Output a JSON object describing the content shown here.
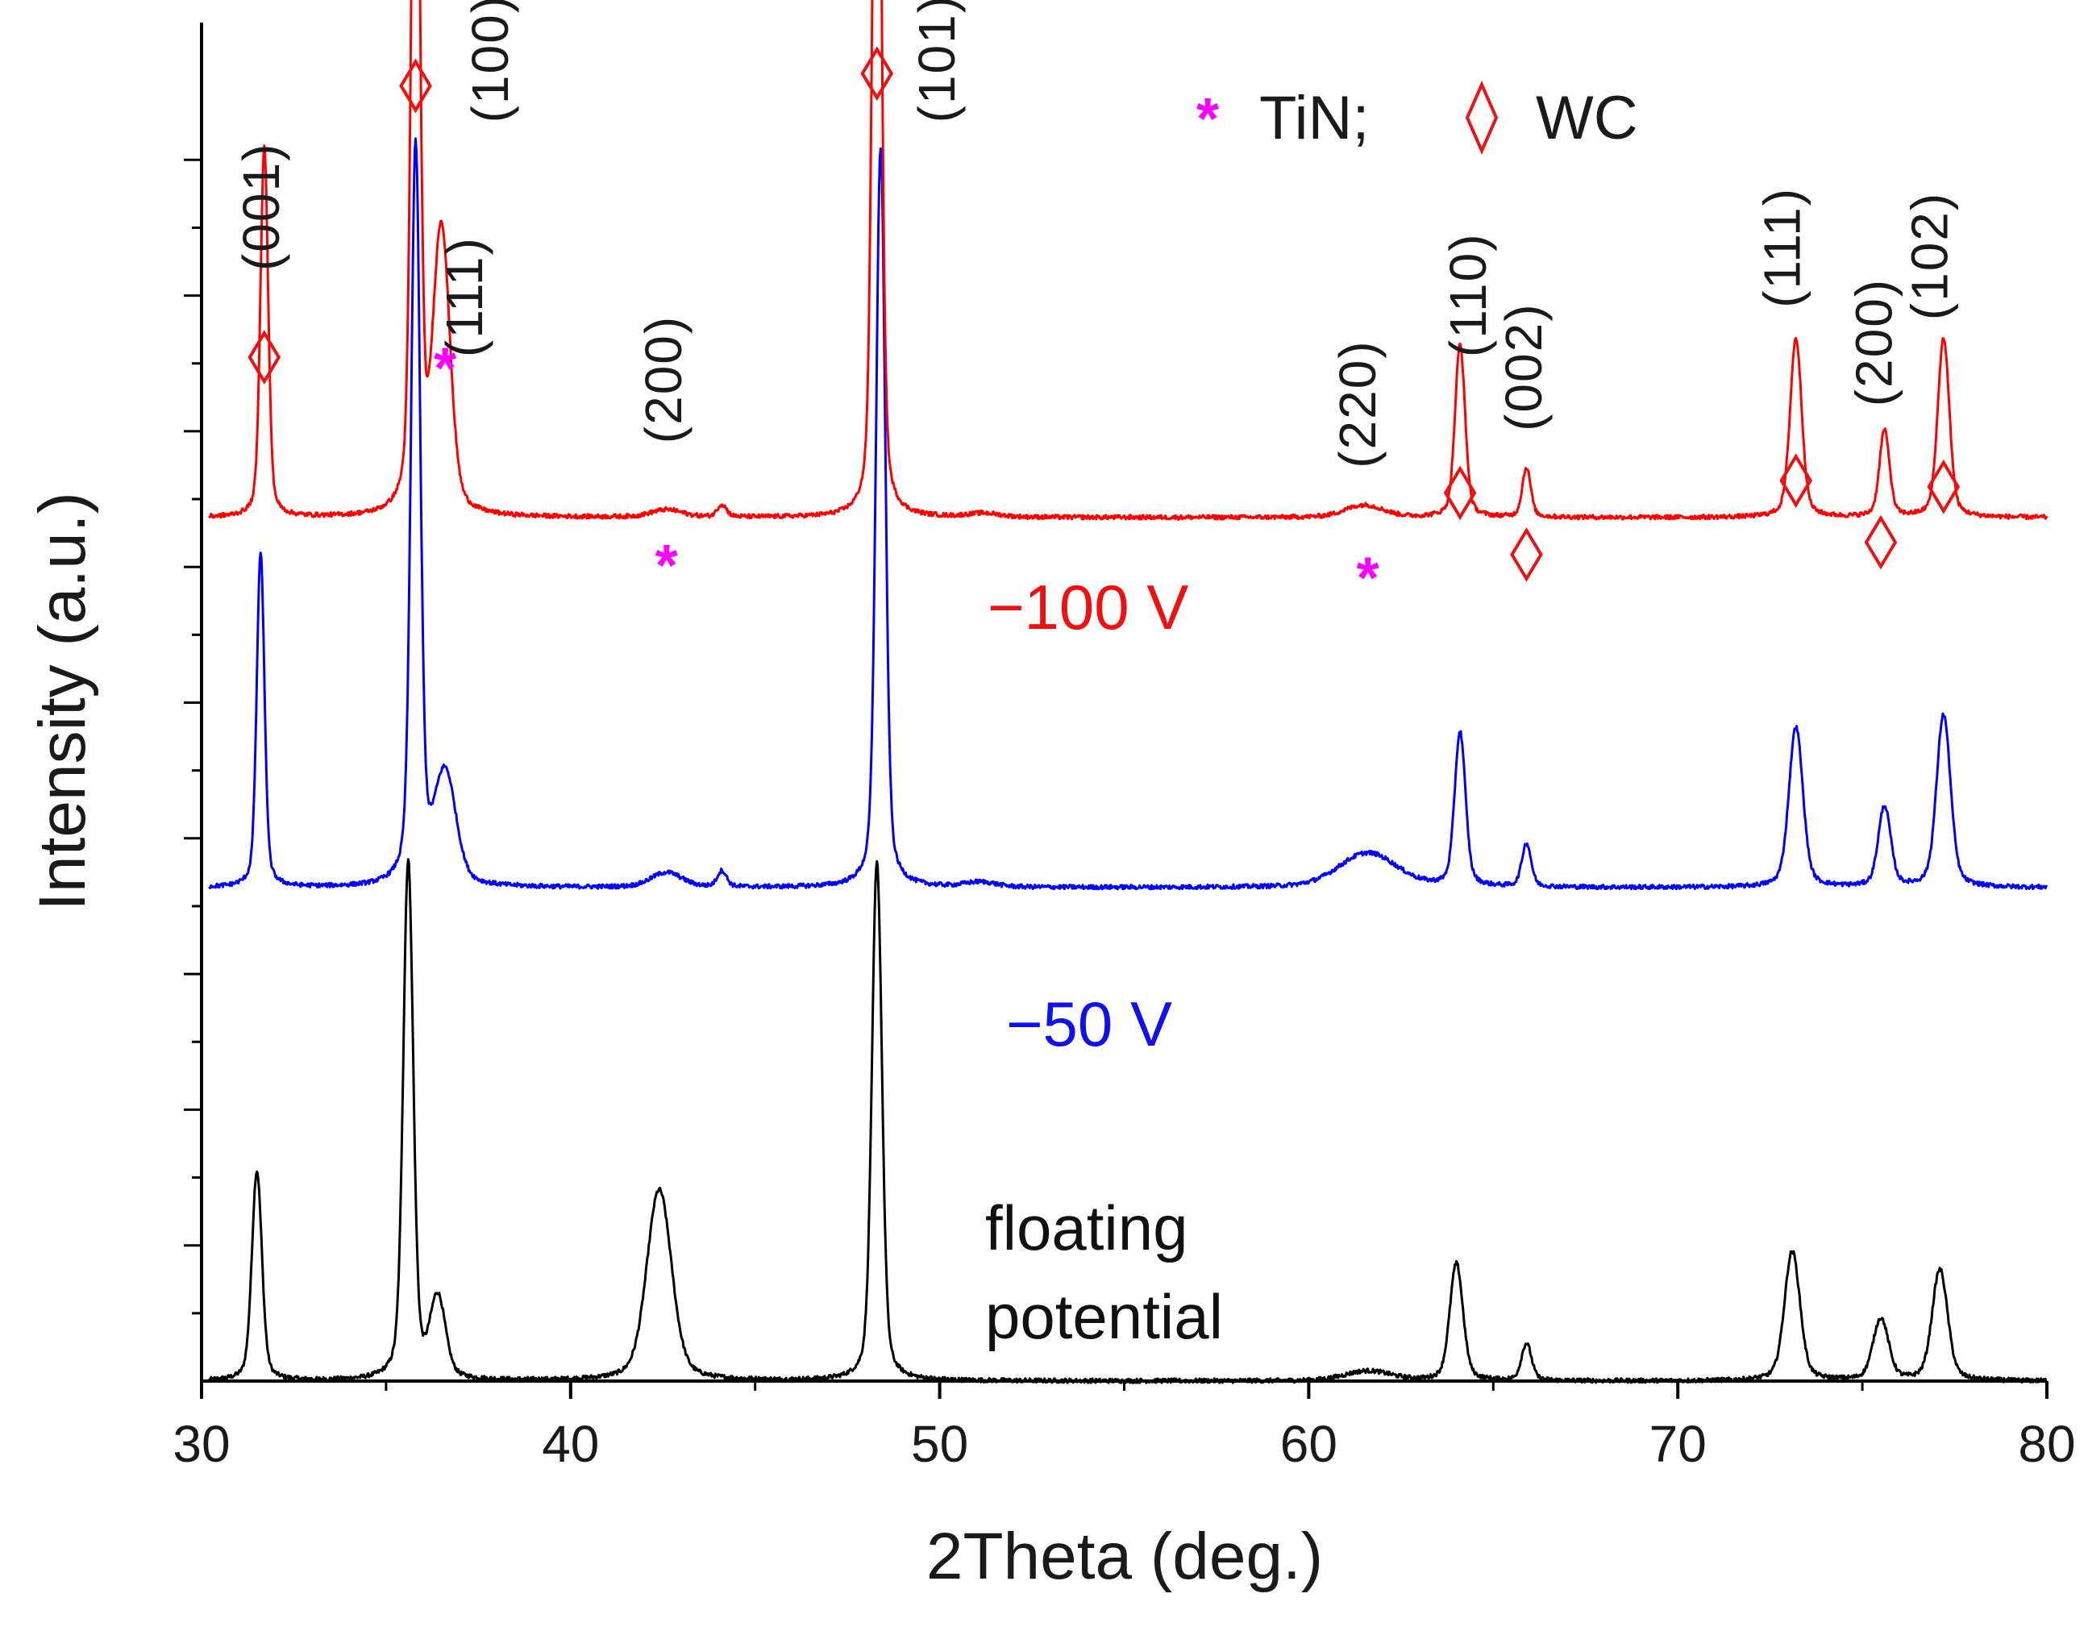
{
  "chart_data": {
    "type": "line",
    "title": "",
    "xlabel": "2Theta (deg.)",
    "ylabel": "Intensity (a.u.)",
    "xlim": [
      30,
      80
    ],
    "ylim": [
      0,
      100
    ],
    "x_ticks": [
      30,
      40,
      50,
      60,
      70,
      80
    ],
    "x_tick_labels": [
      "30",
      "40",
      "50",
      "60",
      "70",
      "80"
    ],
    "y_tick_labels_shown": false,
    "grid": false,
    "legend": {
      "position": "top-right",
      "entries": [
        {
          "marker": "*",
          "label": "TiN;",
          "color": "#ff00ff"
        },
        {
          "marker": "◊",
          "label": "WC",
          "color": "#ee1111"
        }
      ]
    },
    "series": [
      {
        "name": "floating potential",
        "label_lines": [
          "floating",
          "potential"
        ],
        "color": "#000000",
        "baseline": 0,
        "peaks": [
          {
            "x": 31.5,
            "height": 17,
            "width": 0.13
          },
          {
            "x": 35.6,
            "height": 42,
            "width": 0.13
          },
          {
            "x": 36.4,
            "height": 6.5,
            "width": 0.2
          },
          {
            "x": 42.4,
            "height": 15.5,
            "width": 0.32
          },
          {
            "x": 48.3,
            "height": 42,
            "width": 0.13
          },
          {
            "x": 61.6,
            "height": 0.8,
            "width": 0.6
          },
          {
            "x": 64.0,
            "height": 9.5,
            "width": 0.17
          },
          {
            "x": 65.9,
            "height": 3,
            "width": 0.13
          },
          {
            "x": 73.1,
            "height": 10.5,
            "width": 0.2
          },
          {
            "x": 75.5,
            "height": 5,
            "width": 0.2
          },
          {
            "x": 77.1,
            "height": 9,
            "width": 0.2
          }
        ]
      },
      {
        "name": "−50 V",
        "color": "#0000ff",
        "baseline": 40,
        "peaks": [
          {
            "x": 31.6,
            "height": 27,
            "width": 0.1
          },
          {
            "x": 35.8,
            "height": 60,
            "width": 0.12
          },
          {
            "x": 36.6,
            "height": 9,
            "width": 0.28
          },
          {
            "x": 42.6,
            "height": 1.2,
            "width": 0.4
          },
          {
            "x": 44.1,
            "height": 1.3,
            "width": 0.12
          },
          {
            "x": 48.4,
            "height": 60,
            "width": 0.12
          },
          {
            "x": 51.1,
            "height": 0.4,
            "width": 0.4
          },
          {
            "x": 61.6,
            "height": 2.8,
            "width": 0.75
          },
          {
            "x": 64.1,
            "height": 12.5,
            "width": 0.14
          },
          {
            "x": 65.9,
            "height": 3.5,
            "width": 0.12
          },
          {
            "x": 73.2,
            "height": 13,
            "width": 0.18
          },
          {
            "x": 75.6,
            "height": 6.5,
            "width": 0.16
          },
          {
            "x": 77.2,
            "height": 14,
            "width": 0.18
          }
        ]
      },
      {
        "name": "−100 V",
        "color": "#ff0000",
        "baseline": 70,
        "peaks": [
          {
            "x": 31.7,
            "height": 30,
            "width": 0.1
          },
          {
            "x": 35.8,
            "height": 70,
            "width": 0.11
          },
          {
            "x": 36.5,
            "height": 23,
            "width": 0.22
          },
          {
            "x": 42.6,
            "height": 0.6,
            "width": 0.4
          },
          {
            "x": 44.1,
            "height": 1,
            "width": 0.12
          },
          {
            "x": 48.3,
            "height": 78,
            "width": 0.11
          },
          {
            "x": 51.2,
            "height": 0.3,
            "width": 0.4
          },
          {
            "x": 61.5,
            "height": 1,
            "width": 0.5
          },
          {
            "x": 64.1,
            "height": 14,
            "width": 0.13
          },
          {
            "x": 65.9,
            "height": 4,
            "width": 0.11
          },
          {
            "x": 73.2,
            "height": 14.5,
            "width": 0.15
          },
          {
            "x": 75.6,
            "height": 7,
            "width": 0.13
          },
          {
            "x": 77.2,
            "height": 14.5,
            "width": 0.15
          }
        ]
      }
    ],
    "annotations": {
      "hkl_labels": [
        {
          "text": "(001)",
          "x": 32.1,
          "y": 90
        },
        {
          "text": "(100)",
          "x": 38.3,
          "y": 102
        },
        {
          "text": "(111)",
          "x": 37.6,
          "y": 83
        },
        {
          "text": "(200)",
          "x": 43.0,
          "y": 76
        },
        {
          "text": "(101)",
          "x": 50.4,
          "y": 102
        },
        {
          "text": "(220)",
          "x": 61.8,
          "y": 74
        },
        {
          "text": "(110)",
          "x": 64.8,
          "y": 83
        },
        {
          "text": "(002)",
          "x": 66.3,
          "y": 77
        },
        {
          "text": "(111)",
          "x": 73.3,
          "y": 87
        },
        {
          "text": "(200)",
          "x": 75.8,
          "y": 79
        },
        {
          "text": "(102)",
          "x": 77.3,
          "y": 86
        }
      ],
      "wc_markers": [
        31.7,
        35.8,
        48.3,
        64.1,
        65.9,
        73.2,
        75.5,
        77.2
      ],
      "wc_marker_y": [
        83,
        105,
        106,
        72,
        67,
        73,
        68,
        72.5
      ],
      "tin_markers": [
        36.6,
        42.6,
        61.6
      ],
      "tin_marker_y": [
        80.5,
        64.5,
        63.5
      ]
    }
  }
}
